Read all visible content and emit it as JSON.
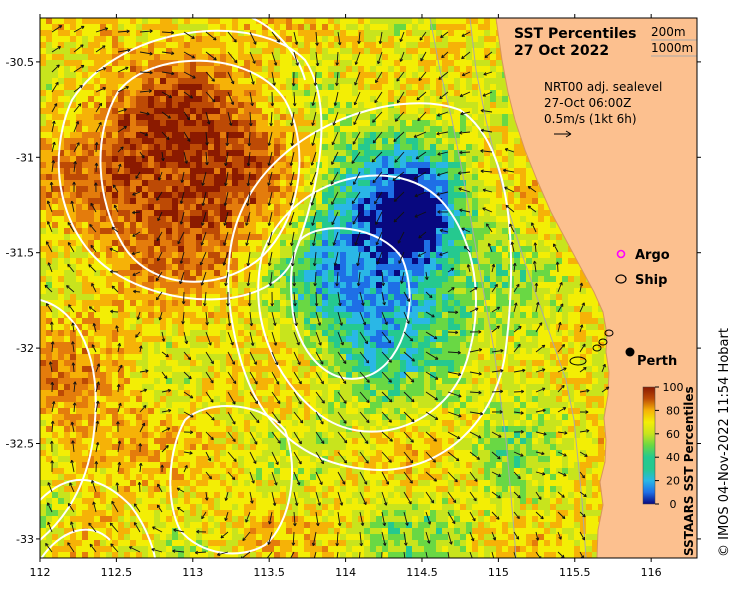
{
  "title": {
    "line1": "SST Percentiles",
    "line2": "27 Oct 2022"
  },
  "contour_legend": {
    "c1": "200m",
    "c2": "1000m"
  },
  "current_info": {
    "line1": "NRT00 adj. sealevel",
    "line2": "27-Oct 06:00Z",
    "line3": "0.5m/s (1kt 6h)"
  },
  "legend": {
    "argo": "Argo",
    "ship": "Ship",
    "argo_color": "#ff00ff"
  },
  "place": {
    "name": "Perth",
    "lon": 115.86,
    "lat": -31.95
  },
  "colorbar": {
    "title": "SSTAARS SST Percentiles",
    "ticks": [
      "0",
      "20",
      "40",
      "60",
      "80",
      "100"
    ],
    "colors": [
      "#08087f",
      "#1e6fe6",
      "#2ab7e6",
      "#25c98f",
      "#69d844",
      "#c8e41d",
      "#f3ee05",
      "#f6b207",
      "#e47c0c",
      "#bd4a05",
      "#8b1a00"
    ]
  },
  "axes": {
    "x_ticks": [
      "112",
      "112.5",
      "113",
      "113.5",
      "114",
      "114.5",
      "115",
      "115.5",
      "116"
    ],
    "y_ticks": [
      "-30.5",
      "-31",
      "-31.5",
      "-32",
      "-32.5",
      "-33"
    ]
  },
  "credit": "© IMOS 04-Nov-2022 11:54 Hobart",
  "colors": {
    "land": "#fcc08f",
    "coast_land_edge": "#e7a778"
  }
}
